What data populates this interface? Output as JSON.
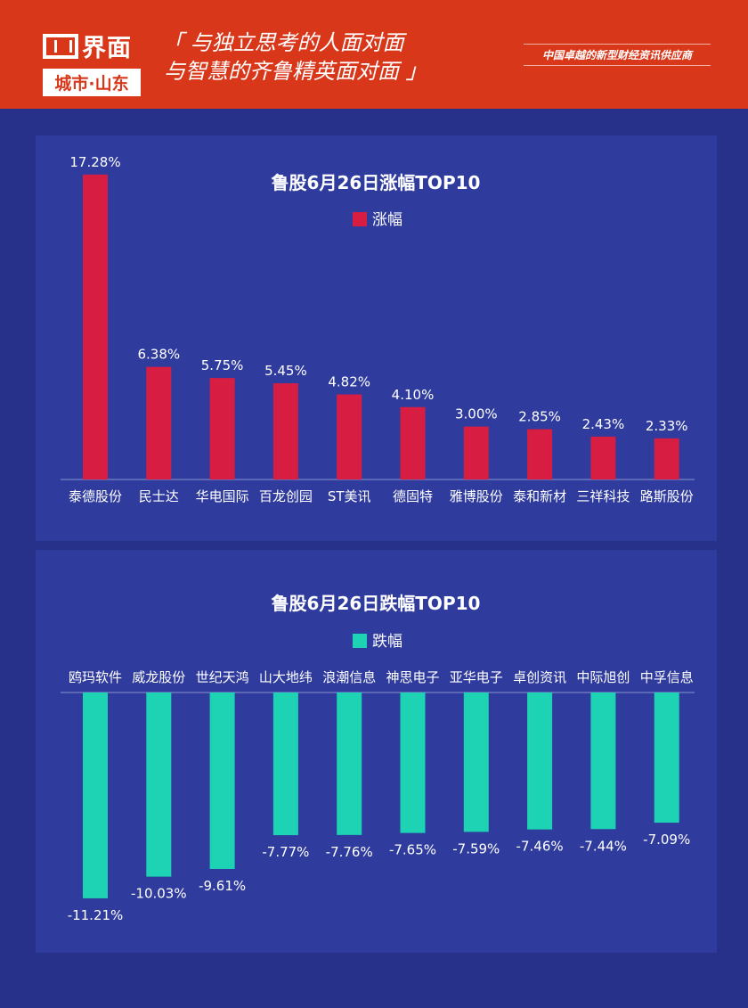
{
  "header": {
    "logo_name": "界面",
    "logo_sub": "城市·山东",
    "slogan_line1": "「 与独立思考的人面对面",
    "slogan_line2": "与智慧的齐鲁精英面对面 」",
    "tagline": "中国卓越的新型财经资讯供应商"
  },
  "colors": {
    "header": "#d8371a",
    "background": "#28318a",
    "panel": "#2f3c9e",
    "gain": "#d81d43",
    "loss": "#1ed3b3"
  },
  "chart_data": [
    {
      "type": "bar",
      "title": "鲁股6月26日涨幅TOP10",
      "legend": "涨幅",
      "legend_position": "top-center",
      "categories": [
        "泰德股份",
        "民士达",
        "华电国际",
        "百龙创园",
        "ST美讯",
        "德固特",
        "雅博股份",
        "泰和新材",
        "三祥科技",
        "路斯股份"
      ],
      "values": [
        17.28,
        6.38,
        5.75,
        5.45,
        4.82,
        4.1,
        3.0,
        2.85,
        2.43,
        2.33
      ],
      "labels": [
        "17.28%",
        "6.38%",
        "5.75%",
        "5.45%",
        "4.82%",
        "4.10%",
        "3.00%",
        "2.85%",
        "2.43%",
        "2.33%"
      ],
      "unit": "%"
    },
    {
      "type": "bar",
      "title": "鲁股6月26日跌幅TOP10",
      "legend": "跌幅",
      "legend_position": "top-center",
      "categories": [
        "鸥玛软件",
        "威龙股份",
        "世纪天鸿",
        "山大地纬",
        "浪潮信息",
        "神思电子",
        "亚华电子",
        "卓创资讯",
        "中际旭创",
        "中孚信息"
      ],
      "values": [
        -11.21,
        -10.03,
        -9.61,
        -7.77,
        -7.76,
        -7.65,
        -7.59,
        -7.46,
        -7.44,
        -7.09
      ],
      "labels": [
        "-11.21%",
        "-10.03%",
        "-9.61%",
        "-7.77%",
        "-7.76%",
        "-7.65%",
        "-7.59%",
        "-7.46%",
        "-7.44%",
        "-7.09%"
      ],
      "unit": "%"
    }
  ]
}
